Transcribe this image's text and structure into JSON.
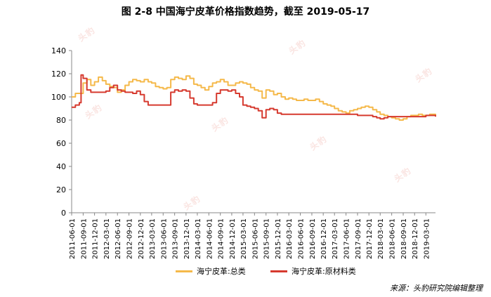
{
  "chart_data": {
    "type": "line",
    "title": "图  2-8 中国海宁皮革价格指数趋势，截至 2019-05-17",
    "xlabel": "",
    "ylabel": "",
    "ylim": [
      0,
      140
    ],
    "yticks": [
      0,
      20,
      40,
      60,
      80,
      100,
      120,
      140
    ],
    "grid": false,
    "legend_position": "bottom",
    "x_ticks": [
      "2011-06-01",
      "2011-09-01",
      "2011-12-01",
      "2012-03-01",
      "2012-06-01",
      "2012-09-01",
      "2012-12-01",
      "2013-03-01",
      "2013-06-01",
      "2013-09-01",
      "2013-12-01",
      "2014-03-01",
      "2014-06-01",
      "2014-09-01",
      "2014-12-01",
      "2015-03-01",
      "2015-06-01",
      "2015-09-01",
      "2015-12-01",
      "2016-03-01",
      "2016-06-01",
      "2016-09-01",
      "2016-12-01",
      "2017-03-01",
      "2017-06-01",
      "2017-09-01",
      "2017-12-01",
      "2018-03-01",
      "2018-06-01",
      "2018-09-01",
      "2018-12-01",
      "2019-03-01"
    ],
    "series": [
      {
        "name": "海宁皮革:总类",
        "color": "#f5b94a",
        "points": [
          [
            "2011-06-01",
            100
          ],
          [
            "2011-07-01",
            103
          ],
          [
            "2011-08-01",
            103
          ],
          [
            "2011-09-01",
            112
          ],
          [
            "2011-10-01",
            115
          ],
          [
            "2011-11-01",
            110
          ],
          [
            "2011-12-01",
            113
          ],
          [
            "2012-01-01",
            117
          ],
          [
            "2012-02-01",
            114
          ],
          [
            "2012-03-01",
            111
          ],
          [
            "2012-04-01",
            109
          ],
          [
            "2012-05-01",
            108
          ],
          [
            "2012-06-01",
            104
          ],
          [
            "2012-07-01",
            106
          ],
          [
            "2012-08-01",
            110
          ],
          [
            "2012-09-01",
            113
          ],
          [
            "2012-10-01",
            115
          ],
          [
            "2012-11-01",
            114
          ],
          [
            "2012-12-01",
            113
          ],
          [
            "2013-01-01",
            115
          ],
          [
            "2013-02-01",
            113
          ],
          [
            "2013-03-01",
            112
          ],
          [
            "2013-04-01",
            109
          ],
          [
            "2013-05-01",
            108
          ],
          [
            "2013-06-01",
            107
          ],
          [
            "2013-07-01",
            108
          ],
          [
            "2013-08-01",
            115
          ],
          [
            "2013-09-01",
            117
          ],
          [
            "2013-10-01",
            116
          ],
          [
            "2013-11-01",
            115
          ],
          [
            "2013-12-01",
            118
          ],
          [
            "2014-01-01",
            116
          ],
          [
            "2014-02-01",
            111
          ],
          [
            "2014-03-01",
            110
          ],
          [
            "2014-04-01",
            108
          ],
          [
            "2014-05-01",
            106
          ],
          [
            "2014-06-01",
            109
          ],
          [
            "2014-07-01",
            112
          ],
          [
            "2014-08-01",
            113
          ],
          [
            "2014-09-01",
            115
          ],
          [
            "2014-10-01",
            113
          ],
          [
            "2014-11-01",
            110
          ],
          [
            "2014-12-01",
            110
          ],
          [
            "2015-01-01",
            112
          ],
          [
            "2015-02-01",
            113
          ],
          [
            "2015-03-01",
            112
          ],
          [
            "2015-04-01",
            111
          ],
          [
            "2015-05-01",
            108
          ],
          [
            "2015-06-01",
            106
          ],
          [
            "2015-07-01",
            105
          ],
          [
            "2015-08-01",
            99
          ],
          [
            "2015-09-01",
            106
          ],
          [
            "2015-10-01",
            105
          ],
          [
            "2015-11-01",
            102
          ],
          [
            "2015-12-01",
            103
          ],
          [
            "2016-01-01",
            100
          ],
          [
            "2016-02-01",
            98
          ],
          [
            "2016-03-01",
            99
          ],
          [
            "2016-04-01",
            98
          ],
          [
            "2016-05-01",
            97
          ],
          [
            "2016-06-01",
            97
          ],
          [
            "2016-07-01",
            98
          ],
          [
            "2016-08-01",
            97
          ],
          [
            "2016-09-01",
            97
          ],
          [
            "2016-10-01",
            98
          ],
          [
            "2016-11-01",
            96
          ],
          [
            "2016-12-01",
            94
          ],
          [
            "2017-01-01",
            93
          ],
          [
            "2017-02-01",
            92
          ],
          [
            "2017-03-01",
            90
          ],
          [
            "2017-04-01",
            88
          ],
          [
            "2017-05-01",
            87
          ],
          [
            "2017-06-01",
            86
          ],
          [
            "2017-07-01",
            88
          ],
          [
            "2017-08-01",
            89
          ],
          [
            "2017-09-01",
            90
          ],
          [
            "2017-10-01",
            91
          ],
          [
            "2017-11-01",
            92
          ],
          [
            "2017-12-01",
            91
          ],
          [
            "2018-01-01",
            89
          ],
          [
            "2018-02-01",
            87
          ],
          [
            "2018-03-01",
            85
          ],
          [
            "2018-04-01",
            84
          ],
          [
            "2018-05-01",
            83
          ],
          [
            "2018-06-01",
            82
          ],
          [
            "2018-07-01",
            81
          ],
          [
            "2018-08-01",
            80
          ],
          [
            "2018-09-01",
            81
          ],
          [
            "2018-10-01",
            83
          ],
          [
            "2018-11-01",
            84
          ],
          [
            "2018-12-01",
            84
          ],
          [
            "2019-01-01",
            85
          ],
          [
            "2019-02-01",
            84
          ],
          [
            "2019-03-01",
            84
          ],
          [
            "2019-04-01",
            85
          ],
          [
            "2019-05-17",
            84
          ]
        ]
      },
      {
        "name": "海宁皮革:原材料类",
        "color": "#d63a2f",
        "points": [
          [
            "2011-06-01",
            91
          ],
          [
            "2011-07-01",
            93
          ],
          [
            "2011-08-01",
            95
          ],
          [
            "2011-08-15",
            119
          ],
          [
            "2011-09-01",
            116
          ],
          [
            "2011-10-01",
            106
          ],
          [
            "2011-11-01",
            104
          ],
          [
            "2011-12-01",
            104
          ],
          [
            "2012-01-01",
            104
          ],
          [
            "2012-02-01",
            104
          ],
          [
            "2012-03-01",
            105
          ],
          [
            "2012-04-01",
            108
          ],
          [
            "2012-05-01",
            110
          ],
          [
            "2012-06-01",
            106
          ],
          [
            "2012-07-01",
            105
          ],
          [
            "2012-08-01",
            104
          ],
          [
            "2012-09-01",
            104
          ],
          [
            "2012-10-01",
            103
          ],
          [
            "2012-11-01",
            105
          ],
          [
            "2012-12-01",
            102
          ],
          [
            "2013-01-01",
            96
          ],
          [
            "2013-02-01",
            93
          ],
          [
            "2013-03-01",
            93
          ],
          [
            "2013-04-01",
            93
          ],
          [
            "2013-05-01",
            93
          ],
          [
            "2013-06-01",
            93
          ],
          [
            "2013-07-01",
            93
          ],
          [
            "2013-08-01",
            104
          ],
          [
            "2013-09-01",
            106
          ],
          [
            "2013-10-01",
            105
          ],
          [
            "2013-11-01",
            106
          ],
          [
            "2013-12-01",
            105
          ],
          [
            "2014-01-01",
            99
          ],
          [
            "2014-02-01",
            94
          ],
          [
            "2014-03-01",
            93
          ],
          [
            "2014-04-01",
            93
          ],
          [
            "2014-05-01",
            93
          ],
          [
            "2014-06-01",
            93
          ],
          [
            "2014-07-01",
            95
          ],
          [
            "2014-08-01",
            103
          ],
          [
            "2014-09-01",
            106
          ],
          [
            "2014-10-01",
            106
          ],
          [
            "2014-11-01",
            105
          ],
          [
            "2014-12-01",
            106
          ],
          [
            "2015-01-01",
            103
          ],
          [
            "2015-02-01",
            100
          ],
          [
            "2015-03-01",
            93
          ],
          [
            "2015-04-01",
            92
          ],
          [
            "2015-05-01",
            91
          ],
          [
            "2015-06-01",
            90
          ],
          [
            "2015-07-01",
            88
          ],
          [
            "2015-08-01",
            82
          ],
          [
            "2015-09-01",
            89
          ],
          [
            "2015-10-01",
            90
          ],
          [
            "2015-11-01",
            89
          ],
          [
            "2015-12-01",
            86
          ],
          [
            "2016-01-01",
            85
          ],
          [
            "2016-03-01",
            85
          ],
          [
            "2016-06-01",
            85
          ],
          [
            "2016-09-01",
            85
          ],
          [
            "2016-12-01",
            85
          ],
          [
            "2017-03-01",
            85
          ],
          [
            "2017-06-01",
            85
          ],
          [
            "2017-09-01",
            84
          ],
          [
            "2017-12-01",
            84
          ],
          [
            "2018-01-01",
            83
          ],
          [
            "2018-02-01",
            82
          ],
          [
            "2018-03-01",
            81
          ],
          [
            "2018-04-01",
            82
          ],
          [
            "2018-05-01",
            83
          ],
          [
            "2018-06-01",
            83
          ],
          [
            "2018-09-01",
            83
          ],
          [
            "2018-12-01",
            83
          ],
          [
            "2019-01-01",
            83
          ],
          [
            "2019-03-01",
            84
          ],
          [
            "2019-05-17",
            83
          ]
        ]
      }
    ]
  },
  "source_note": "来源：头豹研究院编辑整理",
  "watermark_text": "头豹"
}
